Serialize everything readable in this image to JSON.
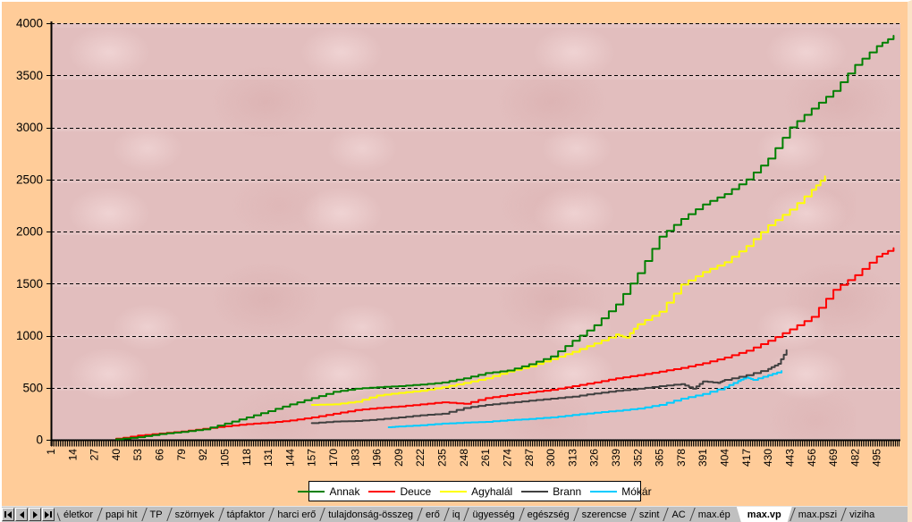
{
  "colors": {
    "window_background": "#FFCC99",
    "plot_background": "#E2BEBE",
    "gridline": "#000000",
    "axis": "#000000",
    "legend_background": "#FFFFFF",
    "tabbar_background": "#C0C0C0",
    "active_tab_background": "#FFFFFF"
  },
  "chart_data": {
    "type": "line",
    "title": "",
    "xlabel": "",
    "ylabel": "",
    "grid": true,
    "legend_position": "bottom",
    "x_axis": {
      "min": 1,
      "max": 508,
      "tick_labels": [
        1,
        14,
        27,
        40,
        53,
        66,
        79,
        92,
        105,
        118,
        131,
        144,
        157,
        170,
        183,
        196,
        209,
        222,
        235,
        248,
        261,
        274,
        287,
        300,
        313,
        326,
        339,
        352,
        365,
        378,
        391,
        404,
        417,
        430,
        443,
        456,
        469,
        482,
        495
      ]
    },
    "y_axis": {
      "min": 0,
      "max": 4000,
      "tick_labels": [
        0,
        500,
        1000,
        1500,
        2000,
        2500,
        3000,
        3500,
        4000
      ]
    },
    "series": [
      {
        "name": "Annak",
        "color": "#008000",
        "points": [
          [
            40,
            5
          ],
          [
            53,
            25
          ],
          [
            66,
            55
          ],
          [
            79,
            75
          ],
          [
            92,
            100
          ],
          [
            105,
            155
          ],
          [
            118,
            215
          ],
          [
            131,
            275
          ],
          [
            144,
            340
          ],
          [
            157,
            400
          ],
          [
            170,
            460
          ],
          [
            183,
            490
          ],
          [
            196,
            505
          ],
          [
            209,
            515
          ],
          [
            222,
            530
          ],
          [
            235,
            550
          ],
          [
            248,
            590
          ],
          [
            261,
            640
          ],
          [
            274,
            665
          ],
          [
            287,
            725
          ],
          [
            300,
            800
          ],
          [
            313,
            950
          ],
          [
            326,
            1100
          ],
          [
            339,
            1300
          ],
          [
            352,
            1600
          ],
          [
            365,
            1950
          ],
          [
            378,
            2120
          ],
          [
            391,
            2260
          ],
          [
            404,
            2360
          ],
          [
            417,
            2500
          ],
          [
            430,
            2700
          ],
          [
            443,
            3000
          ],
          [
            456,
            3180
          ],
          [
            469,
            3350
          ],
          [
            482,
            3600
          ],
          [
            495,
            3780
          ],
          [
            505,
            3880
          ]
        ]
      },
      {
        "name": "Deuce",
        "color": "#FF0000",
        "points": [
          [
            40,
            10
          ],
          [
            53,
            40
          ],
          [
            66,
            60
          ],
          [
            79,
            80
          ],
          [
            92,
            105
          ],
          [
            105,
            130
          ],
          [
            118,
            150
          ],
          [
            131,
            165
          ],
          [
            144,
            185
          ],
          [
            157,
            215
          ],
          [
            170,
            250
          ],
          [
            183,
            285
          ],
          [
            196,
            305
          ],
          [
            209,
            320
          ],
          [
            222,
            340
          ],
          [
            235,
            360
          ],
          [
            248,
            345
          ],
          [
            261,
            400
          ],
          [
            274,
            430
          ],
          [
            287,
            455
          ],
          [
            300,
            480
          ],
          [
            313,
            515
          ],
          [
            326,
            550
          ],
          [
            339,
            590
          ],
          [
            352,
            620
          ],
          [
            365,
            655
          ],
          [
            378,
            690
          ],
          [
            391,
            735
          ],
          [
            404,
            790
          ],
          [
            417,
            855
          ],
          [
            430,
            950
          ],
          [
            443,
            1060
          ],
          [
            456,
            1180
          ],
          [
            469,
            1440
          ],
          [
            482,
            1580
          ],
          [
            495,
            1760
          ],
          [
            505,
            1840
          ]
        ]
      },
      {
        "name": "Agyhalál",
        "color": "#FFFF00",
        "points": [
          [
            157,
            335
          ],
          [
            170,
            340
          ],
          [
            183,
            365
          ],
          [
            196,
            425
          ],
          [
            209,
            450
          ],
          [
            222,
            470
          ],
          [
            235,
            505
          ],
          [
            248,
            545
          ],
          [
            261,
            590
          ],
          [
            274,
            655
          ],
          [
            287,
            705
          ],
          [
            300,
            775
          ],
          [
            313,
            845
          ],
          [
            326,
            925
          ],
          [
            339,
            1010
          ],
          [
            345,
            980
          ],
          [
            352,
            1110
          ],
          [
            365,
            1230
          ],
          [
            378,
            1490
          ],
          [
            391,
            1610
          ],
          [
            404,
            1705
          ],
          [
            417,
            1860
          ],
          [
            430,
            2060
          ],
          [
            443,
            2210
          ],
          [
            456,
            2400
          ],
          [
            464,
            2530
          ]
        ]
      },
      {
        "name": "Brann",
        "color": "#404040",
        "points": [
          [
            157,
            160
          ],
          [
            170,
            175
          ],
          [
            183,
            180
          ],
          [
            196,
            195
          ],
          [
            209,
            215
          ],
          [
            222,
            235
          ],
          [
            235,
            250
          ],
          [
            248,
            305
          ],
          [
            261,
            335
          ],
          [
            274,
            355
          ],
          [
            287,
            375
          ],
          [
            300,
            395
          ],
          [
            313,
            415
          ],
          [
            326,
            445
          ],
          [
            339,
            470
          ],
          [
            352,
            490
          ],
          [
            365,
            515
          ],
          [
            378,
            535
          ],
          [
            385,
            490
          ],
          [
            391,
            560
          ],
          [
            400,
            545
          ],
          [
            404,
            575
          ],
          [
            417,
            620
          ],
          [
            430,
            680
          ],
          [
            436,
            730
          ],
          [
            441,
            860
          ]
        ]
      },
      {
        "name": "Mókár",
        "color": "#00CCFF",
        "points": [
          [
            203,
            120
          ],
          [
            209,
            128
          ],
          [
            222,
            140
          ],
          [
            235,
            155
          ],
          [
            248,
            165
          ],
          [
            261,
            172
          ],
          [
            274,
            188
          ],
          [
            287,
            200
          ],
          [
            300,
            215
          ],
          [
            313,
            238
          ],
          [
            326,
            260
          ],
          [
            339,
            278
          ],
          [
            352,
            300
          ],
          [
            365,
            335
          ],
          [
            378,
            395
          ],
          [
            391,
            440
          ],
          [
            404,
            505
          ],
          [
            412,
            565
          ],
          [
            417,
            600
          ],
          [
            421,
            575
          ],
          [
            430,
            620
          ],
          [
            438,
            660
          ]
        ]
      }
    ]
  },
  "sheet_tabs": {
    "nav_buttons": [
      {
        "name": "first",
        "icon": "first-sheet-icon"
      },
      {
        "name": "previous",
        "icon": "previous-sheet-icon"
      },
      {
        "name": "next",
        "icon": "next-sheet-icon"
      },
      {
        "name": "last",
        "icon": "last-sheet-icon"
      }
    ],
    "tabs": [
      {
        "label": "életkor"
      },
      {
        "label": "papi hit"
      },
      {
        "label": "TP"
      },
      {
        "label": "szörnyek"
      },
      {
        "label": "tápfaktor"
      },
      {
        "label": "harci erő"
      },
      {
        "label": "tulajdonság-összeg"
      },
      {
        "label": "erő"
      },
      {
        "label": "iq"
      },
      {
        "label": "ügyesség"
      },
      {
        "label": "egészség"
      },
      {
        "label": "szerencse"
      },
      {
        "label": "szint"
      },
      {
        "label": "AC"
      },
      {
        "label": "max.ép"
      },
      {
        "label": "max.vp",
        "active": true
      },
      {
        "label": "max.pszi"
      },
      {
        "label": "viziha",
        "clipped": true
      }
    ]
  }
}
